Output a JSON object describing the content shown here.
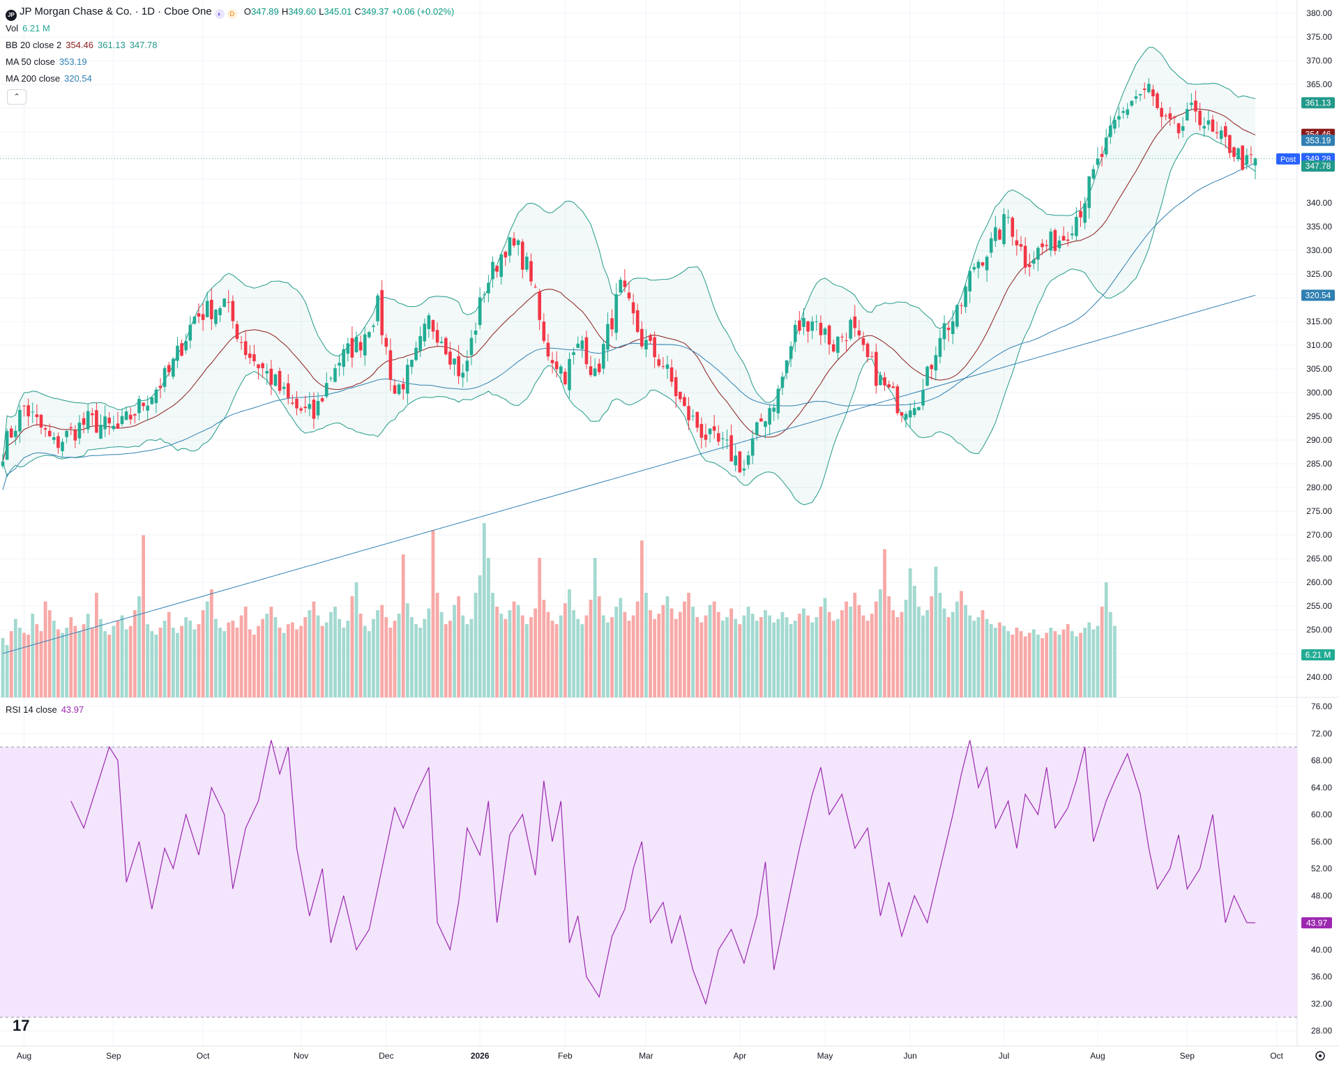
{
  "header": {
    "symbol_icon": "JP",
    "title": "JP Morgan Chase & Co. · 1D · Cboe One",
    "open_label": "O",
    "open": "347.89",
    "high_label": "H",
    "high": "349.60",
    "low_label": "L",
    "low": "345.01",
    "close_label": "C",
    "close": "349.37",
    "change": "+0.06 (+0.02%)"
  },
  "indicators": {
    "vol": {
      "name": "Vol",
      "value": "6.21 M"
    },
    "bb": {
      "name": "BB 20 close 2",
      "basis": "354.46",
      "upper": "361.13",
      "lower": "347.78"
    },
    "ma50": {
      "name": "MA 50 close",
      "value": "353.19"
    },
    "ma200": {
      "name": "MA 200 close",
      "value": "320.54"
    },
    "rsi": {
      "name": "RSI 14 close",
      "value": "43.97"
    }
  },
  "price_axis": {
    "ticks": [
      "380.00",
      "375.00",
      "370.00",
      "365.00",
      "340.00",
      "335.00",
      "330.00",
      "325.00",
      "315.00",
      "310.00",
      "305.00",
      "300.00",
      "295.00",
      "290.00",
      "285.00",
      "280.00",
      "275.00",
      "270.00",
      "265.00",
      "260.00",
      "255.00",
      "250.00",
      "245.00",
      "240.00"
    ],
    "badges": [
      {
        "text": "361.13",
        "value": 361.13,
        "color": "#22998a"
      },
      {
        "text": "354.46",
        "value": 354.46,
        "color": "#8b1a1a"
      },
      {
        "text": "353.19",
        "value": 353.19,
        "color": "#2f7fb2"
      },
      {
        "text": "349.37",
        "value": 349.37,
        "color": "#22ab94"
      },
      {
        "text": "349.28",
        "value": 349.28,
        "color": "#2962ff",
        "prefix": "Post"
      },
      {
        "text": "347.78",
        "value": 347.78,
        "color": "#22998a"
      },
      {
        "text": "320.54",
        "value": 320.54,
        "color": "#2f7fb2"
      }
    ],
    "vol_badge": "6.21 M"
  },
  "rsi_axis": {
    "ticks": [
      "76.00",
      "72.00",
      "68.00",
      "64.00",
      "60.00",
      "56.00",
      "52.00",
      "48.00",
      "40.00",
      "36.00",
      "32.00",
      "28.00"
    ],
    "badge": "43.97"
  },
  "time_axis": {
    "labels": [
      {
        "text": "Aug",
        "day": 5
      },
      {
        "text": "Sep",
        "day": 26
      },
      {
        "text": "Oct",
        "day": 47
      },
      {
        "text": "Nov",
        "day": 70
      },
      {
        "text": "Dec",
        "day": 90
      },
      {
        "text": "2026",
        "day": 112
      },
      {
        "text": "Feb",
        "day": 132
      },
      {
        "text": "Mar",
        "day": 151
      },
      {
        "text": "Apr",
        "day": 173
      },
      {
        "text": "May",
        "day": 193
      },
      {
        "text": "Jun",
        "day": 213
      },
      {
        "text": "Jul",
        "day": 235
      },
      {
        "text": "Aug",
        "day": 257
      },
      {
        "text": "Sep",
        "day": 278
      },
      {
        "text": "Oct",
        "day": 299
      }
    ]
  },
  "colors": {
    "up": "#22ab94",
    "down": "#f23645",
    "bb": "#22998a",
    "basis": "#8b1a1a",
    "ma50": "#2f7fb2",
    "ma200": "#2f7fb2",
    "rsi": "#9c27b0",
    "rsi_band": "#f3e5fc"
  },
  "chart_data": [
    {
      "type": "candlestick",
      "title": "JP Morgan Chase & Co. · 1D · Cboe One",
      "x_unit": "trading-day index (0 = first visible bar, late Jul)",
      "ylim": [
        275,
        381
      ],
      "closes_key": [
        [
          0,
          288
        ],
        [
          5,
          297
        ],
        [
          12,
          289
        ],
        [
          20,
          294
        ],
        [
          27,
          292
        ],
        [
          34,
          299
        ],
        [
          39,
          304
        ],
        [
          45,
          316
        ],
        [
          52,
          319
        ],
        [
          57,
          309
        ],
        [
          63,
          303
        ],
        [
          68,
          297
        ],
        [
          73,
          295
        ],
        [
          78,
          306
        ],
        [
          84,
          311
        ],
        [
          88,
          318
        ],
        [
          92,
          300
        ],
        [
          96,
          305
        ],
        [
          100,
          315
        ],
        [
          103,
          312
        ],
        [
          108,
          303
        ],
        [
          113,
          322
        ],
        [
          118,
          331
        ],
        [
          121,
          330
        ],
        [
          124,
          325
        ],
        [
          127,
          310
        ],
        [
          132,
          304
        ],
        [
          136,
          311
        ],
        [
          139,
          303
        ],
        [
          145,
          322
        ],
        [
          150,
          311
        ],
        [
          155,
          306
        ],
        [
          160,
          296
        ],
        [
          166,
          290
        ],
        [
          170,
          288
        ],
        [
          174,
          284
        ],
        [
          178,
          294
        ],
        [
          182,
          300
        ],
        [
          186,
          313
        ],
        [
          190,
          316
        ],
        [
          195,
          310
        ],
        [
          199,
          314
        ],
        [
          202,
          308
        ],
        [
          207,
          301
        ],
        [
          211,
          297
        ],
        [
          216,
          300
        ],
        [
          220,
          313
        ],
        [
          224,
          316
        ],
        [
          228,
          327
        ],
        [
          232,
          331
        ],
        [
          236,
          337
        ],
        [
          240,
          328
        ],
        [
          245,
          331
        ],
        [
          249,
          333
        ],
        [
          253,
          339
        ],
        [
          257,
          348
        ],
        [
          261,
          356
        ],
        [
          265,
          362
        ],
        [
          269,
          364
        ],
        [
          272,
          357
        ],
        [
          276,
          355
        ],
        [
          280,
          360
        ],
        [
          284,
          354
        ],
        [
          288,
          352
        ],
        [
          292,
          348
        ],
        [
          294,
          349.37
        ]
      ],
      "bb_basis_last": 354.46,
      "bb_upper_last": 361.13,
      "bb_lower_last": 347.78,
      "ma50_last": 353.19,
      "ma200_last": 320.54
    },
    {
      "type": "bar",
      "title": "Vol",
      "last_value": "6.21 M",
      "relative_heights": [
        0.34,
        0.3,
        0.38,
        0.45,
        0.4,
        0.37,
        0.36,
        0.48,
        0.42,
        0.38,
        0.55,
        0.5,
        0.44,
        0.39,
        0.37,
        0.4,
        0.46,
        0.41,
        0.38,
        0.42,
        0.48,
        0.4,
        0.6,
        0.45,
        0.38,
        0.36,
        0.41,
        0.44,
        0.47,
        0.39,
        0.41,
        0.5,
        0.58,
        0.93,
        0.42,
        0.38,
        0.36,
        0.4,
        0.44,
        0.49,
        0.4,
        0.37,
        0.41,
        0.46,
        0.44,
        0.39,
        0.42,
        0.5,
        0.55,
        0.62,
        0.45,
        0.4,
        0.38,
        0.43,
        0.44,
        0.4,
        0.47,
        0.52,
        0.39,
        0.36,
        0.41,
        0.45,
        0.48,
        0.52,
        0.46,
        0.4,
        0.37,
        0.42,
        0.43,
        0.39,
        0.41,
        0.46,
        0.5,
        0.55,
        0.47,
        0.41,
        0.43,
        0.49,
        0.52,
        0.45,
        0.4,
        0.44,
        0.58,
        0.66,
        0.48,
        0.41,
        0.38,
        0.45,
        0.5,
        0.53,
        0.46,
        0.4,
        0.44,
        0.48,
        0.82,
        0.54,
        0.46,
        0.42,
        0.4,
        0.45,
        0.51,
        0.96,
        0.6,
        0.49,
        0.42,
        0.44,
        0.53,
        0.58,
        0.47,
        0.42,
        0.45,
        0.6,
        0.7,
        1.0,
        0.8,
        0.6,
        0.52,
        0.48,
        0.45,
        0.5,
        0.55,
        0.53,
        0.47,
        0.42,
        0.46,
        0.51,
        0.8,
        0.56,
        0.49,
        0.44,
        0.42,
        0.47,
        0.54,
        0.62,
        0.5,
        0.45,
        0.42,
        0.47,
        0.56,
        0.8,
        0.58,
        0.47,
        0.43,
        0.46,
        0.52,
        0.57,
        0.49,
        0.44,
        0.47,
        0.55,
        0.9,
        0.6,
        0.5,
        0.45,
        0.48,
        0.53,
        0.58,
        0.51,
        0.45,
        0.49,
        0.55,
        0.6,
        0.52,
        0.46,
        0.43,
        0.47,
        0.53,
        0.55,
        0.49,
        0.44,
        0.46,
        0.51,
        0.45,
        0.42,
        0.47,
        0.52,
        0.48,
        0.44,
        0.46,
        0.5,
        0.47,
        0.43,
        0.45,
        0.49,
        0.46,
        0.42,
        0.44,
        0.48,
        0.51,
        0.47,
        0.43,
        0.46,
        0.52,
        0.57,
        0.49,
        0.44,
        0.45,
        0.5,
        0.55,
        0.52,
        0.6,
        0.53,
        0.47,
        0.44,
        0.48,
        0.55,
        0.62,
        0.85,
        0.58,
        0.5,
        0.46,
        0.49,
        0.56,
        0.74,
        0.64,
        0.52,
        0.47,
        0.5,
        0.58,
        0.75,
        0.6,
        0.51,
        0.46,
        0.49,
        0.55,
        0.61,
        0.53,
        0.47,
        0.44,
        0.46,
        0.5,
        0.45,
        0.42,
        0.4,
        0.43,
        0.41,
        0.38,
        0.36,
        0.4,
        0.38,
        0.35,
        0.37,
        0.39,
        0.36,
        0.34,
        0.37,
        0.4,
        0.38,
        0.36,
        0.39,
        0.42,
        0.38,
        0.35,
        0.37,
        0.4,
        0.43,
        0.39,
        0.41,
        0.52,
        0.66,
        0.49,
        0.41
      ]
    },
    {
      "type": "line",
      "title": "RSI 14 close",
      "ylim": [
        27.5,
        76.5
      ],
      "band": [
        30,
        70
      ],
      "values_key": [
        [
          0,
          62
        ],
        [
          3,
          58
        ],
        [
          6,
          64
        ],
        [
          9,
          70
        ],
        [
          11,
          68
        ],
        [
          13,
          50
        ],
        [
          16,
          56
        ],
        [
          19,
          46
        ],
        [
          22,
          55
        ],
        [
          24,
          52
        ],
        [
          27,
          60
        ],
        [
          30,
          54
        ],
        [
          33,
          64
        ],
        [
          36,
          60
        ],
        [
          38,
          49
        ],
        [
          41,
          58
        ],
        [
          44,
          62
        ],
        [
          47,
          71
        ],
        [
          49,
          66
        ],
        [
          51,
          70
        ],
        [
          53,
          55
        ],
        [
          56,
          45
        ],
        [
          59,
          52
        ],
        [
          61,
          41
        ],
        [
          64,
          48
        ],
        [
          67,
          40
        ],
        [
          70,
          43
        ],
        [
          73,
          52
        ],
        [
          76,
          61
        ],
        [
          78,
          58
        ],
        [
          81,
          63
        ],
        [
          84,
          67
        ],
        [
          86,
          44
        ],
        [
          89,
          40
        ],
        [
          91,
          47
        ],
        [
          93,
          58
        ],
        [
          96,
          54
        ],
        [
          98,
          62
        ],
        [
          100,
          44
        ],
        [
          103,
          57
        ],
        [
          106,
          60
        ],
        [
          109,
          51
        ],
        [
          111,
          65
        ],
        [
          113,
          56
        ],
        [
          115,
          62
        ],
        [
          117,
          41
        ],
        [
          119,
          45
        ],
        [
          121,
          36
        ],
        [
          124,
          33
        ],
        [
          127,
          42
        ],
        [
          130,
          46
        ],
        [
          132,
          52
        ],
        [
          134,
          56
        ],
        [
          136,
          44
        ],
        [
          139,
          47
        ],
        [
          141,
          41
        ],
        [
          143,
          45
        ],
        [
          146,
          37
        ],
        [
          149,
          32
        ],
        [
          152,
          40
        ],
        [
          155,
          43
        ],
        [
          158,
          38
        ],
        [
          161,
          45
        ],
        [
          163,
          53
        ],
        [
          165,
          37
        ],
        [
          168,
          46
        ],
        [
          171,
          55
        ],
        [
          174,
          63
        ],
        [
          176,
          67
        ],
        [
          178,
          60
        ],
        [
          181,
          63
        ],
        [
          184,
          55
        ],
        [
          187,
          58
        ],
        [
          190,
          45
        ],
        [
          192,
          50
        ],
        [
          195,
          42
        ],
        [
          198,
          48
        ],
        [
          201,
          44
        ],
        [
          204,
          52
        ],
        [
          207,
          60
        ],
        [
          209,
          66
        ],
        [
          211,
          71
        ],
        [
          213,
          64
        ],
        [
          215,
          67
        ],
        [
          217,
          58
        ],
        [
          220,
          62
        ],
        [
          222,
          55
        ],
        [
          224,
          63
        ],
        [
          227,
          60
        ],
        [
          229,
          67
        ],
        [
          231,
          58
        ],
        [
          234,
          61
        ],
        [
          236,
          65
        ],
        [
          238,
          70
        ],
        [
          240,
          56
        ],
        [
          243,
          62
        ],
        [
          245,
          65
        ],
        [
          248,
          69
        ],
        [
          251,
          63
        ],
        [
          253,
          55
        ],
        [
          255,
          49
        ],
        [
          258,
          52
        ],
        [
          260,
          57
        ],
        [
          262,
          49
        ],
        [
          265,
          52
        ],
        [
          268,
          60
        ],
        [
          271,
          44
        ],
        [
          273,
          48
        ],
        [
          276,
          44
        ],
        [
          278,
          43.97
        ]
      ]
    }
  ]
}
